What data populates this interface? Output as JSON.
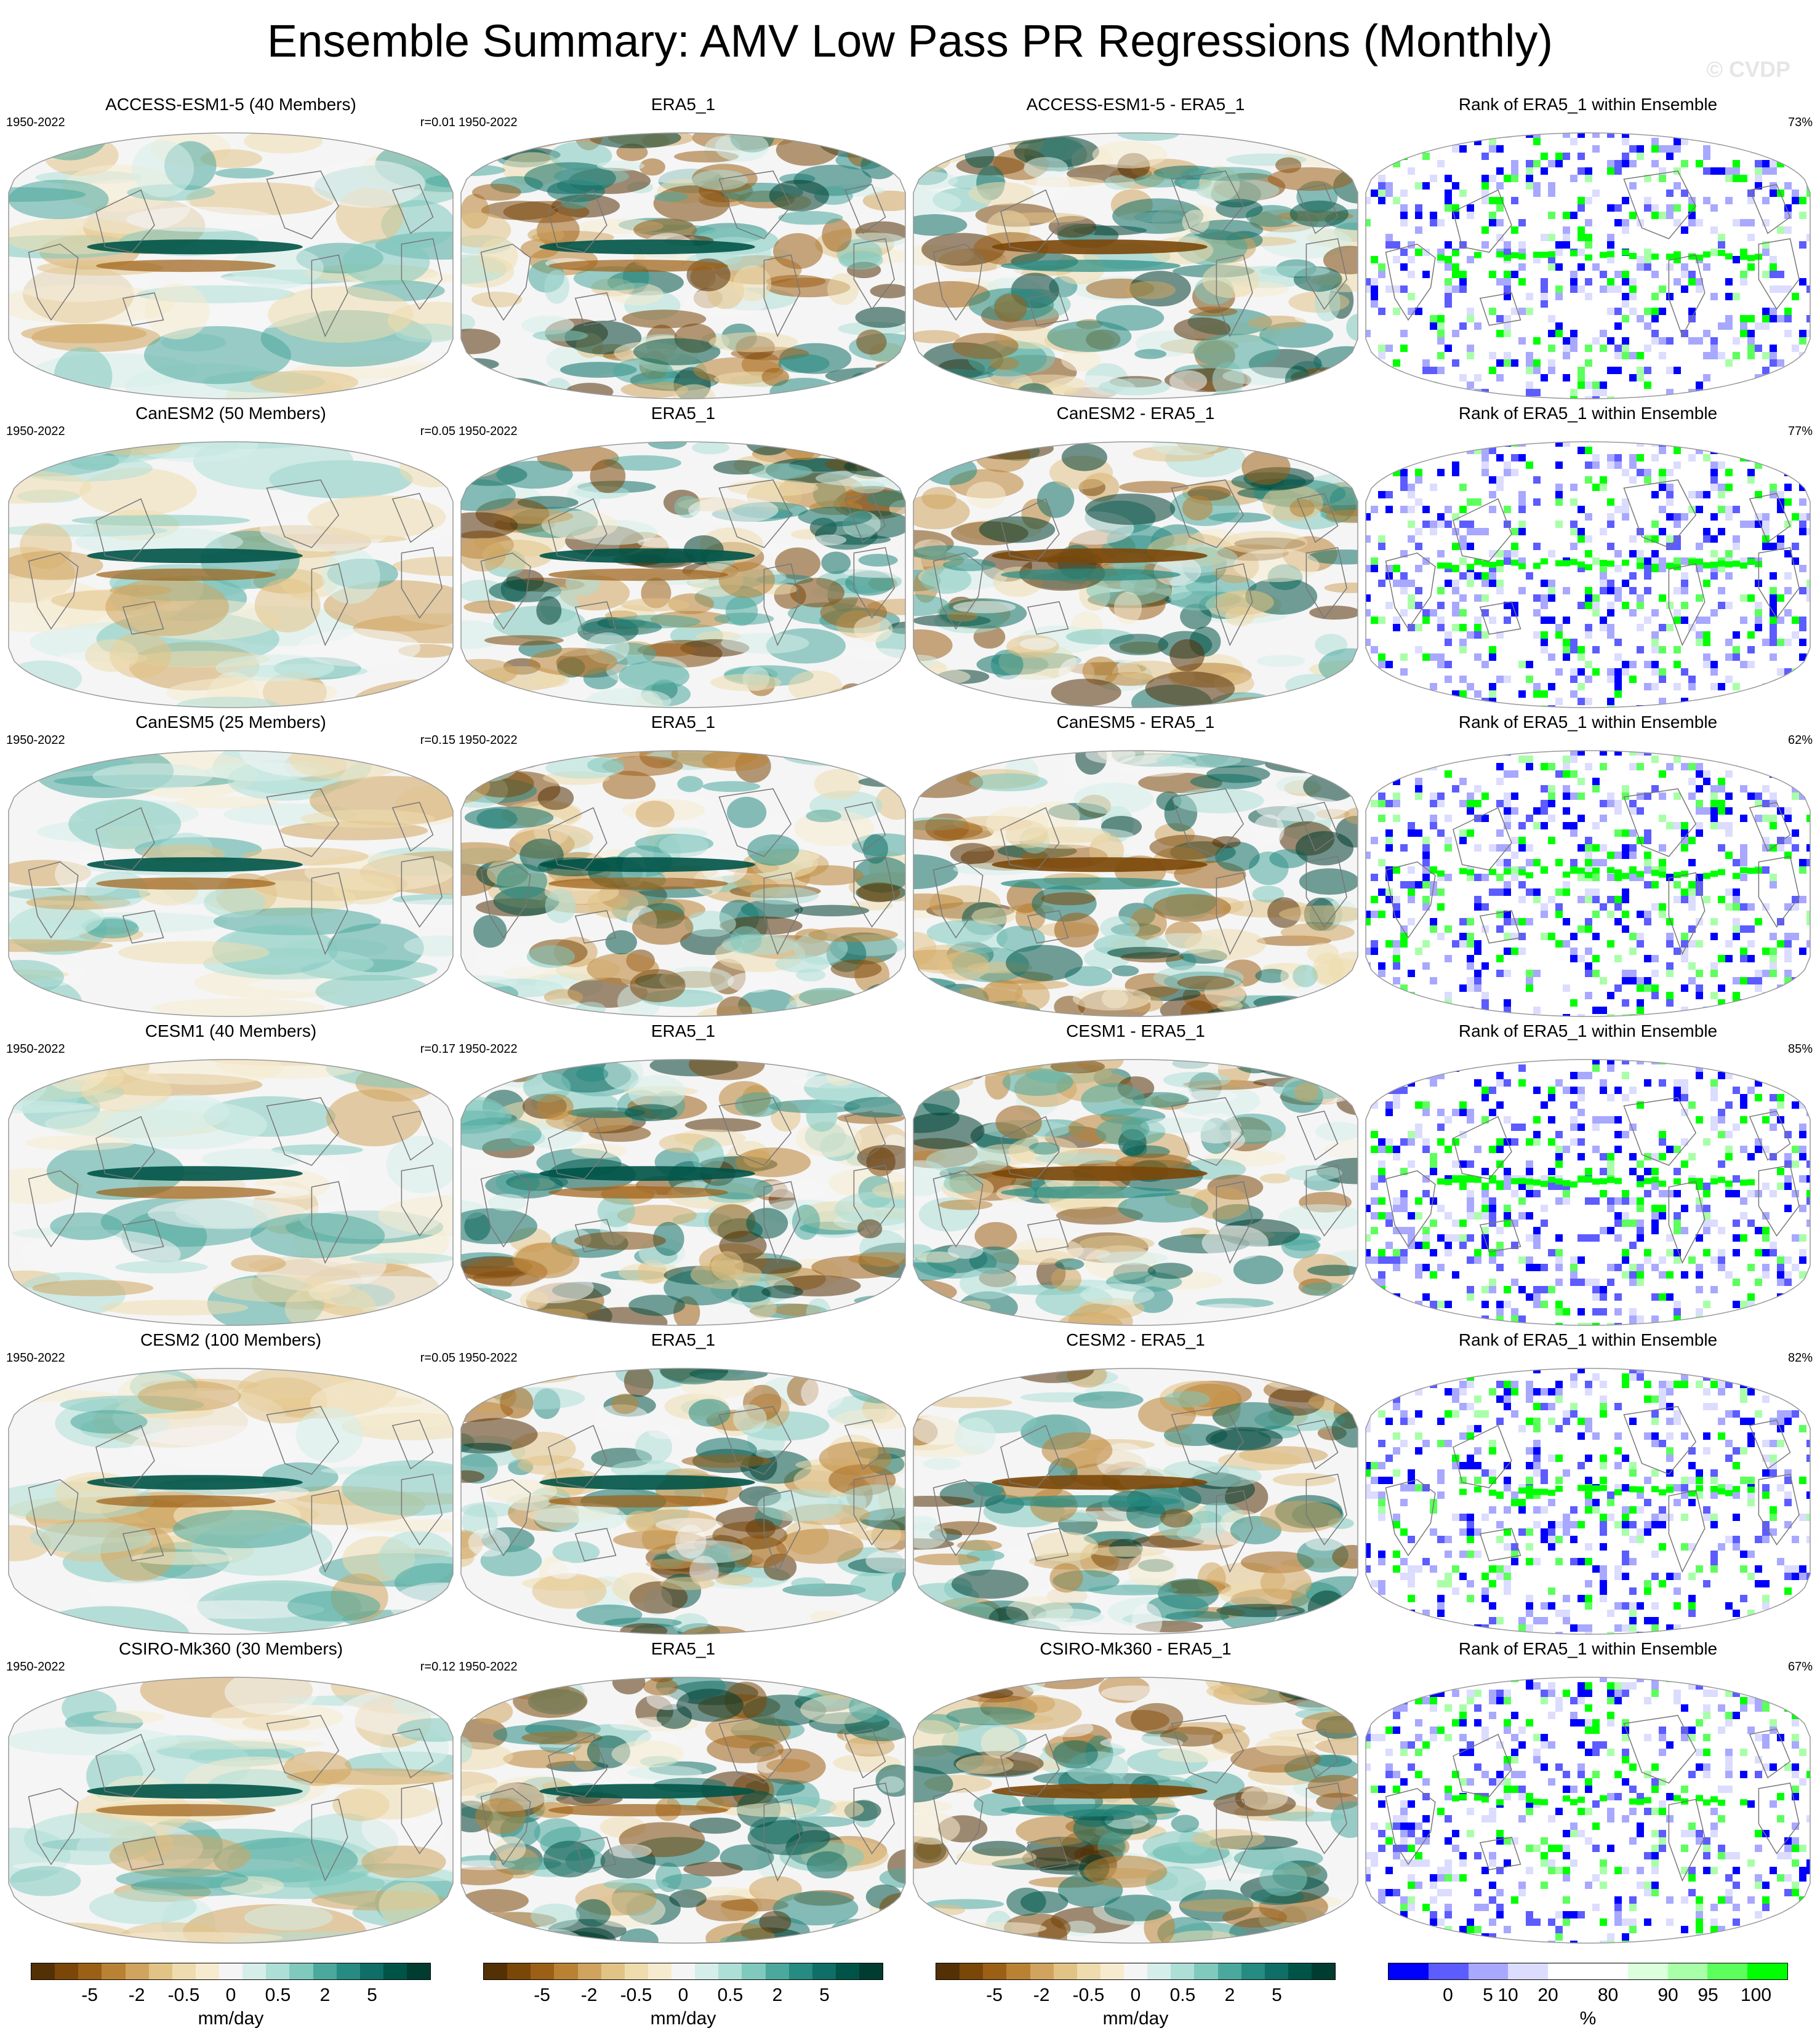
{
  "title": "Ensemble Summary: AMV Low Pass PR Regressions (Monthly)",
  "watermark": "© CVDP",
  "colors": {
    "brown_dark": "#543005",
    "teal_dark": "#003c30",
    "neutral": "#f5f5f5",
    "rank_blue": "#0000ff",
    "rank_green": "#00ff00"
  },
  "rows": [
    {
      "model": "ACCESS-ESM1-5",
      "members": 40,
      "title": "ACCESS-ESM1-5 (40 Members)",
      "period": "1950-2022",
      "r": "r=0.01",
      "obs_title": "ERA5_1",
      "obs_period": "1950-2022",
      "diff_title": "ACCESS-ESM1-5 - ERA5_1",
      "rank_title": "Rank of ERA5_1 within Ensemble",
      "rank_pct": "73%"
    },
    {
      "model": "CanESM2",
      "members": 50,
      "title": "CanESM2 (50 Members)",
      "period": "1950-2022",
      "r": "r=0.05",
      "obs_title": "ERA5_1",
      "obs_period": "1950-2022",
      "diff_title": "CanESM2 - ERA5_1",
      "rank_title": "Rank of ERA5_1 within Ensemble",
      "rank_pct": "77%"
    },
    {
      "model": "CanESM5",
      "members": 25,
      "title": "CanESM5 (25 Members)",
      "period": "1950-2022",
      "r": "r=0.15",
      "obs_title": "ERA5_1",
      "obs_period": "1950-2022",
      "diff_title": "CanESM5 - ERA5_1",
      "rank_title": "Rank of ERA5_1 within Ensemble",
      "rank_pct": "62%"
    },
    {
      "model": "CESM1",
      "members": 40,
      "title": "CESM1 (40 Members)",
      "period": "1950-2022",
      "r": "r=0.17",
      "obs_title": "ERA5_1",
      "obs_period": "1950-2022",
      "diff_title": "CESM1 - ERA5_1",
      "rank_title": "Rank of ERA5_1 within Ensemble",
      "rank_pct": "85%"
    },
    {
      "model": "CESM2",
      "members": 100,
      "title": "CESM2 (100 Members)",
      "period": "1950-2022",
      "r": "r=0.05",
      "obs_title": "ERA5_1",
      "obs_period": "1950-2022",
      "diff_title": "CESM2 - ERA5_1",
      "rank_title": "Rank of ERA5_1 within Ensemble",
      "rank_pct": "82%"
    },
    {
      "model": "CSIRO-Mk360",
      "members": 30,
      "title": "CSIRO-Mk360 (30 Members)",
      "period": "1950-2022",
      "r": "r=0.12",
      "obs_title": "ERA5_1",
      "obs_period": "1950-2022",
      "diff_title": "CSIRO-Mk360 - ERA5_1",
      "rank_title": "Rank of ERA5_1 within Ensemble",
      "rank_pct": "67%"
    }
  ],
  "colorbars": {
    "pr": {
      "unit": "mm/day",
      "tick_labels": [
        "-5",
        "-2",
        "-0.5",
        "0",
        "0.5",
        "2",
        "5"
      ],
      "colors": [
        "#543005",
        "#7a4709",
        "#9c5f16",
        "#b98233",
        "#d0a45e",
        "#e1c386",
        "#efdcae",
        "#f6ebcf",
        "#f5f5f5",
        "#d6eeea",
        "#aedfd7",
        "#80c9bd",
        "#4ba89d",
        "#268b81",
        "#0f6e65",
        "#005347",
        "#003c30"
      ]
    },
    "rank": {
      "unit": "%",
      "tick_labels": [
        "0",
        "5",
        "10",
        "20",
        "80",
        "90",
        "95",
        "100"
      ],
      "colors": [
        "#0000ff",
        "#5c5cff",
        "#a8a8ff",
        "#dcdcff",
        "#ffffff",
        "#ffffff",
        "#dcffdc",
        "#a8ffa8",
        "#5cff5c",
        "#00ff00"
      ]
    }
  },
  "chart_data": [
    {
      "type": "heatmap",
      "projection": "robinson",
      "layout": "6 rows x 4 columns of global maps plus 4 shared colorbars",
      "columns": [
        "model ensemble-mean regression",
        "ERA5_1 observed regression",
        "model minus ERA5_1",
        "rank of ERA5_1 within ensemble"
      ],
      "rows": [
        "ACCESS-ESM1-5",
        "CanESM2",
        "CanESM5",
        "CESM1",
        "CESM2",
        "CSIRO-Mk360"
      ],
      "pattern_correlations": [
        0.01,
        0.05,
        0.15,
        0.17,
        0.05,
        0.12
      ],
      "rank_percent_within": [
        73,
        77,
        62,
        85,
        82,
        67
      ],
      "period": "1950-2022",
      "pr_colorbar_levels": [
        -5,
        -2,
        -0.5,
        0,
        0.5,
        2,
        5
      ],
      "rank_colorbar_levels": [
        0,
        5,
        10,
        20,
        80,
        90,
        95,
        100
      ]
    }
  ]
}
